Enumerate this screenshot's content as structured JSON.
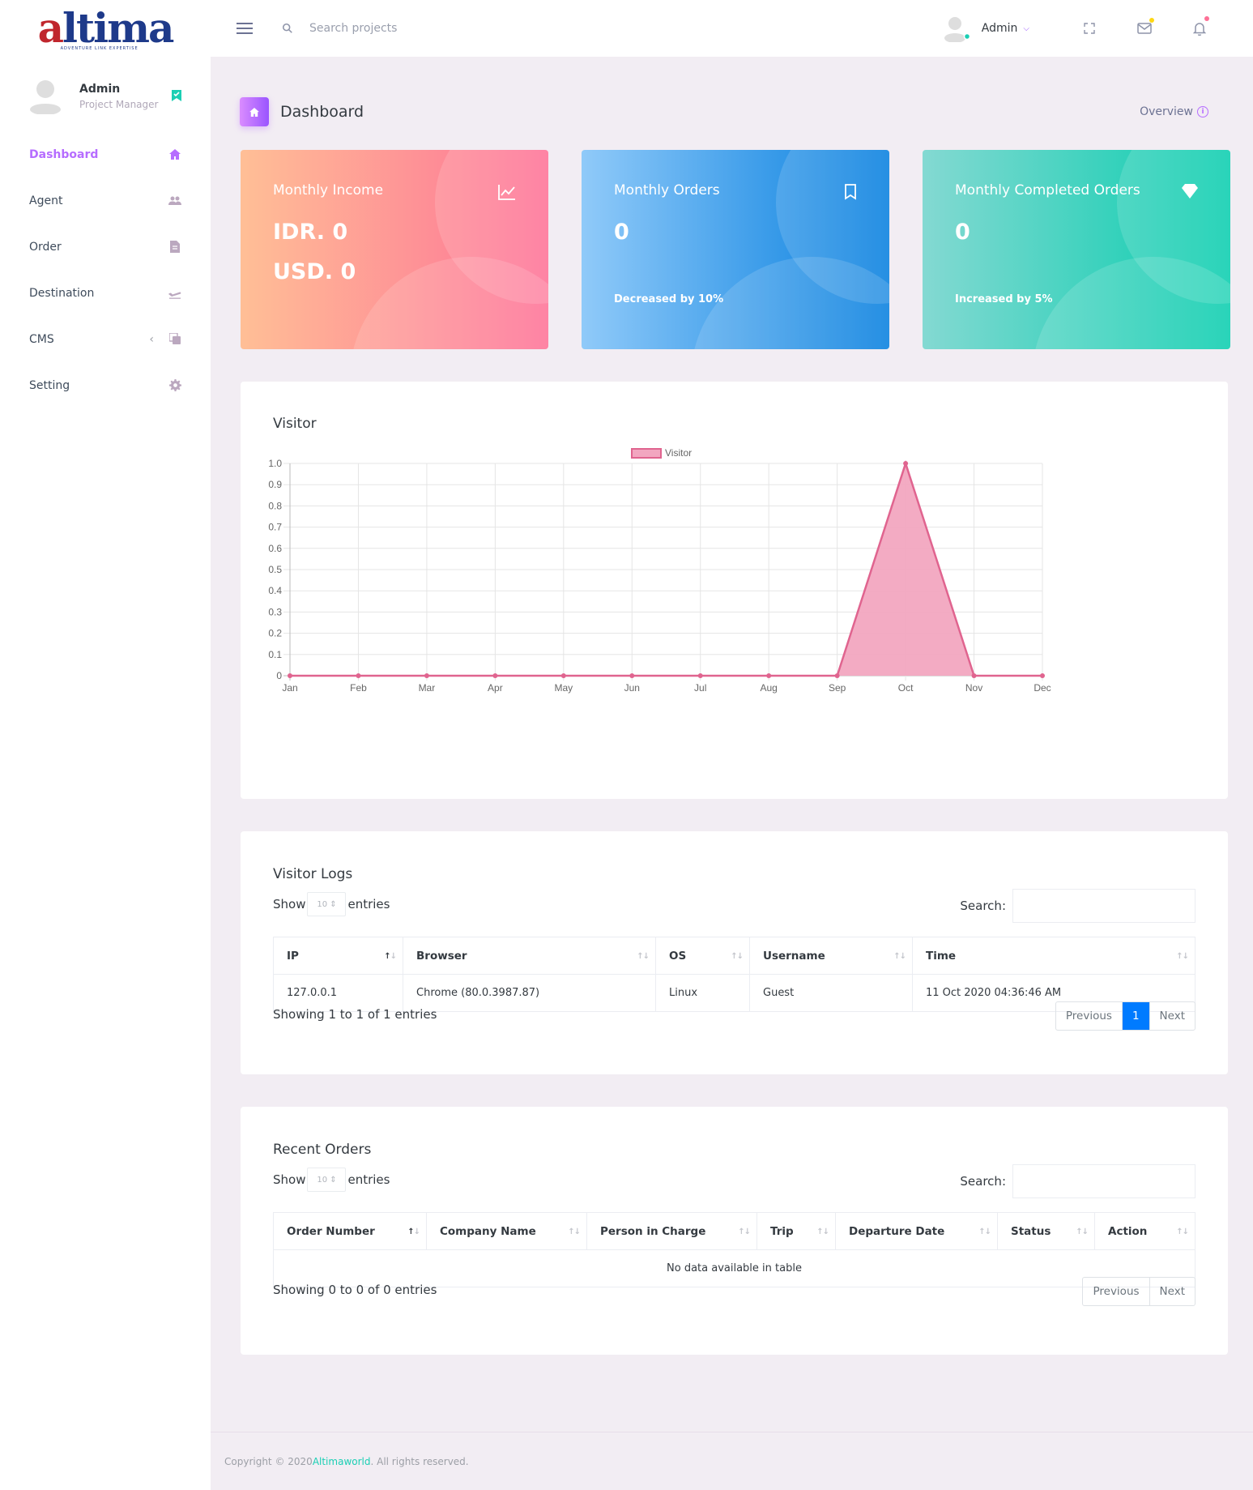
{
  "brand": {
    "logo_first": "a",
    "logo_rest": "ltima",
    "tagline": "ADVENTURE LINK EXPERTISE"
  },
  "navbar": {
    "search_placeholder": "Search projects",
    "profile_name": "Admin",
    "icons": [
      "menu-icon",
      "search-icon",
      "fullscreen-icon",
      "mail-icon",
      "bell-icon"
    ],
    "dot_colors": {
      "mail": "#fed713",
      "bell": "#fe7096"
    }
  },
  "sidebar": {
    "profile": {
      "name": "Admin",
      "role": "Project Manager"
    },
    "items": [
      {
        "label": "Dashboard",
        "icon": "home-icon",
        "active": true
      },
      {
        "label": "Agent",
        "icon": "users-icon"
      },
      {
        "label": "Order",
        "icon": "document-icon"
      },
      {
        "label": "Destination",
        "icon": "airplane-icon"
      },
      {
        "label": "CMS",
        "icon": "copy-icon"
      },
      {
        "label": "Setting",
        "icon": "gear-icon"
      }
    ]
  },
  "page_header": {
    "title": "Dashboard",
    "overview": "Overview"
  },
  "cards": [
    {
      "title": "Monthly Income",
      "value1": "IDR. 0",
      "value2": "USD. 0",
      "icon": "chart-line-icon"
    },
    {
      "title": "Monthly Orders",
      "value": "0",
      "sub": "Decreased by 10%",
      "icon": "bookmark-icon"
    },
    {
      "title": "Monthly Completed Orders",
      "value": "0",
      "sub": "Increased by 5%",
      "icon": "diamond-icon"
    }
  ],
  "visitor_panel": {
    "title": "Visitor"
  },
  "chart_data": {
    "type": "area",
    "title": "",
    "categories": [
      "Jan",
      "Feb",
      "Mar",
      "Apr",
      "May",
      "Jun",
      "Jul",
      "Aug",
      "Sep",
      "Oct",
      "Nov",
      "Dec"
    ],
    "series": [
      {
        "name": "Visitor",
        "values": [
          0,
          0,
          0,
          0,
          0,
          0,
          0,
          0,
          0,
          1,
          0,
          0
        ]
      }
    ],
    "ylim": [
      0,
      1
    ],
    "yticks": [
      "0",
      "0.1",
      "0.2",
      "0.3",
      "0.4",
      "0.5",
      "0.6",
      "0.7",
      "0.8",
      "0.9",
      "1.0"
    ],
    "grid": true,
    "legend": "top-center",
    "colors": {
      "line": "#e0648f",
      "fill": "#f2a6c0"
    }
  },
  "visitor_logs": {
    "title": "Visitor Logs",
    "show": "Show",
    "entries": "entries",
    "length": "10",
    "search_label": "Search:",
    "columns": [
      "IP",
      "Browser",
      "OS",
      "Username",
      "Time"
    ],
    "rows": [
      [
        "127.0.0.1",
        "Chrome (80.0.3987.87)",
        "Linux",
        "Guest",
        "11 Oct 2020 04:36:46 AM"
      ]
    ],
    "info": "Showing 1 to 1 of 1 entries",
    "pager": {
      "prev": "Previous",
      "page": "1",
      "next": "Next"
    }
  },
  "recent_orders": {
    "title": "Recent Orders",
    "show": "Show",
    "entries": "entries",
    "length": "10",
    "search_label": "Search:",
    "columns": [
      "Order Number",
      "Company Name",
      "Person in Charge",
      "Trip",
      "Departure Date",
      "Status",
      "Action"
    ],
    "empty": "No data available in table",
    "info": "Showing 0 to 0 of 0 entries",
    "pager": {
      "prev": "Previous",
      "next": "Next"
    }
  },
  "footer": {
    "prefix": "Copyright © 2020 ",
    "link": "Altimaworld",
    "suffix": ". All rights reserved."
  }
}
